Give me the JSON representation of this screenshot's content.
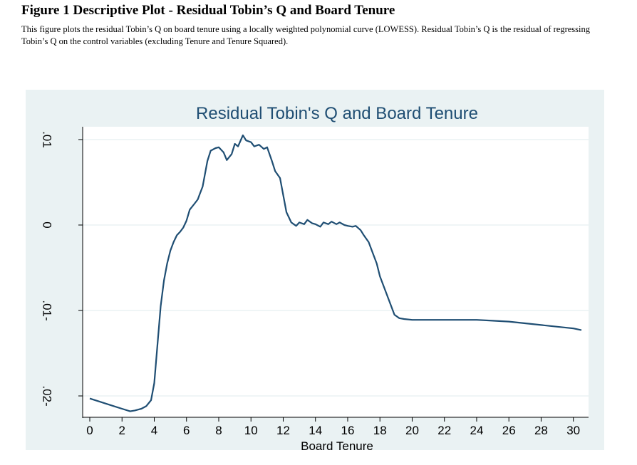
{
  "figure": {
    "title": "Figure 1 Descriptive Plot - Residual Tobin’s Q and Board Tenure",
    "caption": "This figure plots the residual Tobin’s Q on board tenure using a locally weighted polynomial curve (LOWESS). Residual Tobin’s Q is the residual of regressing Tobin’s Q on the control variables (excluding Tenure and Tenure Squared)."
  },
  "colors": {
    "background": "#eaf2f3",
    "plot_area": "#ffffff",
    "line": "#1f4e73",
    "grid": "#eaf2f3",
    "axis": "#000000",
    "title": "#1f4e73"
  },
  "chart_data": {
    "type": "line",
    "title": "Residual Tobin's Q and Board Tenure",
    "xlabel": "Board Tenure",
    "ylabel": "",
    "xlim": [
      0,
      30.5
    ],
    "ylim": [
      -0.0225,
      0.0115
    ],
    "grid": true,
    "legend": "none",
    "x_ticks": [
      0,
      2,
      4,
      6,
      8,
      10,
      12,
      14,
      16,
      18,
      20,
      22,
      24,
      26,
      28,
      30
    ],
    "x_tick_labels": [
      "0",
      "2",
      "4",
      "6",
      "8",
      "10",
      "12",
      "14",
      "16",
      "18",
      "20",
      "22",
      "24",
      "26",
      "28",
      "30"
    ],
    "y_ticks": [
      -0.02,
      -0.01,
      0,
      0.01
    ],
    "y_tick_labels": [
      ".02-",
      ".01-",
      "0",
      ".01"
    ],
    "series": [
      {
        "x": [
          0,
          0.5,
          1,
          1.5,
          2,
          2.5,
          2.8,
          3.0,
          3.2,
          3.5,
          3.8,
          4.0,
          4.2,
          4.4,
          4.6,
          4.8,
          5.0,
          5.2,
          5.4,
          5.6,
          5.8,
          6.0,
          6.2,
          6.5,
          6.7,
          6.8,
          7.0,
          7.3,
          7.5,
          7.8,
          8.0,
          8.3,
          8.5,
          8.8,
          9.0,
          9.2,
          9.5,
          9.7,
          10.0,
          10.2,
          10.5,
          10.8,
          11.0,
          11.3,
          11.5,
          11.8,
          12.0,
          12.2,
          12.5,
          12.8,
          13.0,
          13.3,
          13.5,
          13.8,
          14.0,
          14.3,
          14.5,
          14.8,
          15.0,
          15.3,
          15.5,
          15.8,
          16.0,
          16.3,
          16.5,
          16.8,
          17.0,
          17.3,
          17.5,
          17.8,
          18.0,
          18.3,
          18.6,
          18.9,
          19.2,
          19.5,
          20.0,
          21.0,
          22.0,
          23.0,
          24.0,
          25.0,
          26.0,
          27.0,
          28.0,
          29.0,
          30.0,
          30.5
        ],
        "y": [
          -0.0203,
          -0.0206,
          -0.0209,
          -0.0212,
          -0.0215,
          -0.0218,
          -0.0217,
          -0.0216,
          -0.0215,
          -0.0212,
          -0.0205,
          -0.0185,
          -0.014,
          -0.0095,
          -0.0065,
          -0.0045,
          -0.003,
          -0.002,
          -0.0012,
          -0.0008,
          -0.0003,
          0.0005,
          0.0018,
          0.0025,
          0.003,
          0.0035,
          0.0045,
          0.0075,
          0.0087,
          0.009,
          0.0091,
          0.0085,
          0.0076,
          0.0083,
          0.0095,
          0.0092,
          0.0105,
          0.0099,
          0.0097,
          0.0092,
          0.0094,
          0.0089,
          0.0091,
          0.0075,
          0.0063,
          0.0055,
          0.0035,
          0.0015,
          0.0003,
          -0.0001,
          0.0003,
          0.0001,
          0.0006,
          0.0002,
          0.0001,
          -0.0002,
          0.0003,
          0.0001,
          0.0004,
          0.0001,
          0.0003,
          0.0,
          -0.0001,
          -0.0002,
          -0.0001,
          -0.0006,
          -0.0012,
          -0.002,
          -0.003,
          -0.0045,
          -0.006,
          -0.0075,
          -0.009,
          -0.0105,
          -0.0109,
          -0.011,
          -0.0111,
          -0.0111,
          -0.0111,
          -0.0111,
          -0.0111,
          -0.0112,
          -0.0113,
          -0.0115,
          -0.0117,
          -0.0119,
          -0.0121,
          -0.0123
        ]
      }
    ]
  }
}
